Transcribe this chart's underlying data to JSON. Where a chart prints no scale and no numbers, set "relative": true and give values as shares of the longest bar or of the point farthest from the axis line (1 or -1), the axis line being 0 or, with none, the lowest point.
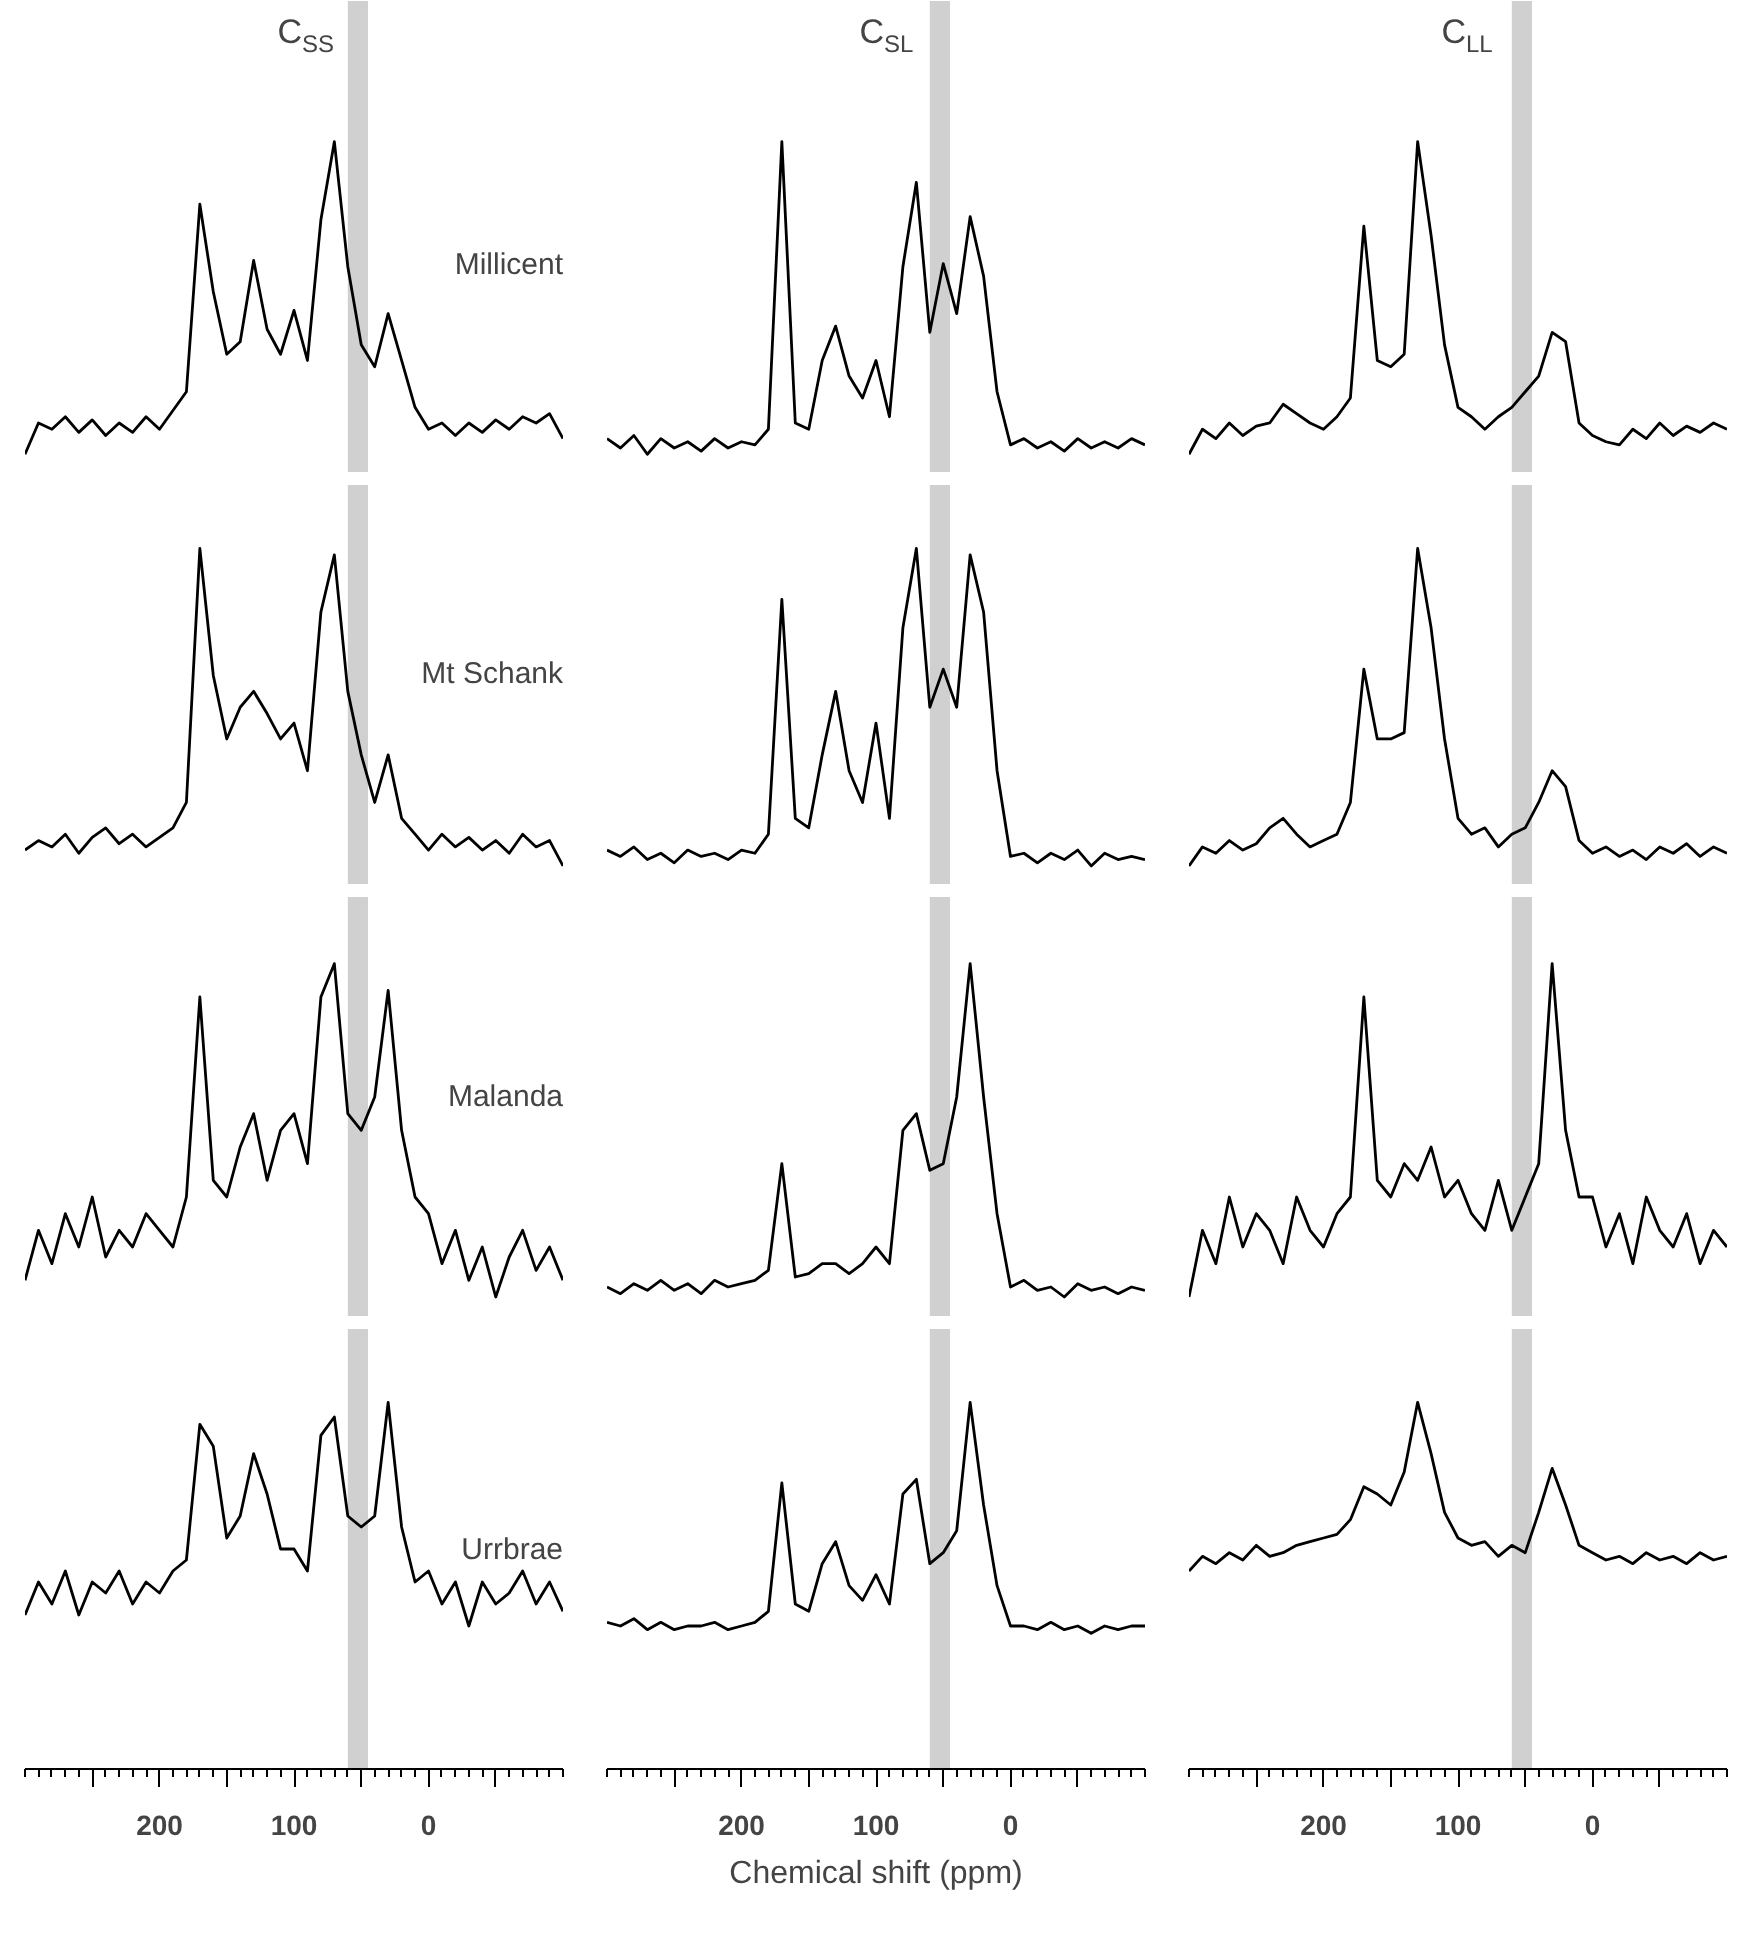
{
  "chart_data": [
    {
      "type": "line",
      "relative": true,
      "title": "C$_{SS}$",
      "annotations": [
        "Millicent"
      ],
      "color": "#000000",
      "tick_labels": false,
      "categories": [
        null,
        null,
        null,
        null,
        null,
        null,
        null,
        null,
        null,
        null,
        null,
        null,
        null,
        null,
        null,
        null,
        null,
        null,
        null,
        null,
        null,
        null,
        null,
        null,
        null,
        null,
        null,
        null,
        null,
        null,
        null,
        null,
        null,
        null,
        null,
        null,
        null,
        null,
        null,
        null,
        null
      ],
      "values": [
        0,
        0.1,
        0.08,
        0.12,
        0.07,
        0.11,
        0.06,
        0.1,
        0.07,
        0.12,
        0.08,
        0.14,
        0.2,
        0.8,
        0.52,
        0.32,
        0.36,
        0.62,
        0.4,
        0.32,
        0.46,
        0.3,
        0.75,
        1,
        0.6,
        0.35,
        0.28,
        0.45,
        0.3,
        0.15,
        0.08,
        0.1,
        0.06,
        0.1,
        0.07,
        0.11,
        0.08,
        0.12,
        0.1,
        0.13,
        0.05
      ]
    },
    {
      "type": "line",
      "relative": true,
      "title": "C$_{SL}$",
      "color": "#000000",
      "tick_labels": false,
      "categories": [
        null,
        null,
        null,
        null,
        null,
        null,
        null,
        null,
        null,
        null,
        null,
        null,
        null,
        null,
        null,
        null,
        null,
        null,
        null,
        null,
        null,
        null,
        null,
        null,
        null,
        null,
        null,
        null,
        null,
        null,
        null,
        null,
        null,
        null,
        null,
        null,
        null,
        null,
        null,
        null,
        null
      ],
      "values": [
        0.05,
        0.02,
        0.06,
        0.0,
        0.05,
        0.02,
        0.04,
        0.01,
        0.05,
        0.02,
        0.04,
        0.03,
        0.08,
        1,
        0.1,
        0.08,
        0.3,
        0.41,
        0.25,
        0.18,
        0.3,
        0.12,
        0.6,
        0.87,
        0.39,
        0.61,
        0.45,
        0.76,
        0.57,
        0.2,
        0.03,
        0.05,
        0.02,
        0.04,
        0.01,
        0.05,
        0.02,
        0.04,
        0.02,
        0.05,
        0.03
      ]
    },
    {
      "type": "line",
      "relative": true,
      "title": "C$_{LL}$",
      "color": "#000000",
      "tick_labels": false,
      "categories": [
        null,
        null,
        null,
        null,
        null,
        null,
        null,
        null,
        null,
        null,
        null,
        null,
        null,
        null,
        null,
        null,
        null,
        null,
        null,
        null,
        null,
        null,
        null,
        null,
        null,
        null,
        null,
        null,
        null,
        null,
        null,
        null,
        null,
        null,
        null,
        null,
        null,
        null,
        null,
        null,
        null
      ],
      "values": [
        0,
        0.08,
        0.05,
        0.1,
        0.06,
        0.09,
        0.1,
        0.16,
        0.13,
        0.1,
        0.08,
        0.12,
        0.18,
        0.73,
        0.3,
        0.28,
        0.32,
        1,
        0.7,
        0.35,
        0.15,
        0.12,
        0.08,
        0.12,
        0.15,
        0.2,
        0.25,
        0.39,
        0.36,
        0.1,
        0.06,
        0.04,
        0.03,
        0.08,
        0.05,
        0.1,
        0.06,
        0.09,
        0.07,
        0.1,
        0.08
      ]
    },
    {
      "type": "line",
      "relative": true,
      "annotations": [
        "Mt Schank"
      ],
      "color": "#000000",
      "tick_labels": false,
      "categories": [
        null,
        null,
        null,
        null,
        null,
        null,
        null,
        null,
        null,
        null,
        null,
        null,
        null,
        null,
        null,
        null,
        null,
        null,
        null,
        null,
        null,
        null,
        null,
        null,
        null,
        null,
        null,
        null,
        null,
        null,
        null,
        null,
        null,
        null,
        null,
        null,
        null,
        null,
        null,
        null,
        null
      ],
      "values": [
        0.05,
        0.08,
        0.06,
        0.1,
        0.04,
        0.09,
        0.12,
        0.07,
        0.1,
        0.06,
        0.09,
        0.12,
        0.2,
        1,
        0.6,
        0.4,
        0.5,
        0.55,
        0.48,
        0.4,
        0.45,
        0.3,
        0.8,
        0.98,
        0.55,
        0.35,
        0.2,
        0.35,
        0.15,
        0.1,
        0.05,
        0.1,
        0.06,
        0.09,
        0.05,
        0.08,
        0.04,
        0.1,
        0.06,
        0.08,
        0
      ]
    },
    {
      "type": "line",
      "relative": true,
      "color": "#000000",
      "tick_labels": false,
      "categories": [
        null,
        null,
        null,
        null,
        null,
        null,
        null,
        null,
        null,
        null,
        null,
        null,
        null,
        null,
        null,
        null,
        null,
        null,
        null,
        null,
        null,
        null,
        null,
        null,
        null,
        null,
        null,
        null,
        null,
        null,
        null,
        null,
        null,
        null,
        null,
        null,
        null,
        null,
        null,
        null,
        null
      ],
      "values": [
        0.05,
        0.03,
        0.06,
        0.02,
        0.04,
        0.01,
        0.05,
        0.03,
        0.04,
        0.02,
        0.05,
        0.04,
        0.1,
        0.84,
        0.15,
        0.12,
        0.35,
        0.55,
        0.3,
        0.2,
        0.45,
        0.15,
        0.75,
        1,
        0.5,
        0.62,
        0.5,
        0.98,
        0.8,
        0.3,
        0.03,
        0.04,
        0.01,
        0.04,
        0.02,
        0.05,
        0.0,
        0.04,
        0.02,
        0.03,
        0.02
      ]
    },
    {
      "type": "line",
      "relative": true,
      "color": "#000000",
      "tick_labels": false,
      "categories": [
        null,
        null,
        null,
        null,
        null,
        null,
        null,
        null,
        null,
        null,
        null,
        null,
        null,
        null,
        null,
        null,
        null,
        null,
        null,
        null,
        null,
        null,
        null,
        null,
        null,
        null,
        null,
        null,
        null,
        null,
        null,
        null,
        null,
        null,
        null,
        null,
        null,
        null,
        null,
        null,
        null
      ],
      "values": [
        0,
        0.06,
        0.04,
        0.08,
        0.05,
        0.07,
        0.12,
        0.15,
        0.1,
        0.06,
        0.08,
        0.1,
        0.2,
        0.62,
        0.4,
        0.4,
        0.42,
        1,
        0.75,
        0.4,
        0.15,
        0.1,
        0.12,
        0.06,
        0.1,
        0.12,
        0.2,
        0.3,
        0.25,
        0.08,
        0.04,
        0.06,
        0.03,
        0.05,
        0.02,
        0.06,
        0.04,
        0.07,
        0.03,
        0.06,
        0.04
      ]
    },
    {
      "type": "line",
      "relative": true,
      "annotations": [
        "Malanda"
      ],
      "color": "#000000",
      "tick_labels": false,
      "categories": [
        null,
        null,
        null,
        null,
        null,
        null,
        null,
        null,
        null,
        null,
        null,
        null,
        null,
        null,
        null,
        null,
        null,
        null,
        null,
        null,
        null,
        null,
        null,
        null,
        null,
        null,
        null,
        null,
        null,
        null,
        null,
        null,
        null,
        null,
        null,
        null,
        null,
        null,
        null,
        null,
        null
      ],
      "values": [
        0.05,
        0.2,
        0.1,
        0.25,
        0.15,
        0.3,
        0.12,
        0.2,
        0.15,
        0.25,
        0.2,
        0.15,
        0.3,
        0.9,
        0.35,
        0.3,
        0.45,
        0.55,
        0.35,
        0.5,
        0.55,
        0.4,
        0.9,
        1,
        0.55,
        0.5,
        0.6,
        0.92,
        0.5,
        0.3,
        0.25,
        0.1,
        0.2,
        0.05,
        0.15,
        0,
        0.12,
        0.2,
        0.08,
        0.15,
        0.05
      ]
    },
    {
      "type": "line",
      "relative": true,
      "color": "#000000",
      "tick_labels": false,
      "categories": [
        null,
        null,
        null,
        null,
        null,
        null,
        null,
        null,
        null,
        null,
        null,
        null,
        null,
        null,
        null,
        null,
        null,
        null,
        null,
        null,
        null,
        null,
        null,
        null,
        null,
        null,
        null,
        null,
        null,
        null,
        null,
        null,
        null,
        null,
        null,
        null,
        null,
        null,
        null,
        null,
        null
      ],
      "values": [
        0.03,
        0.01,
        0.04,
        0.02,
        0.05,
        0.02,
        0.04,
        0.01,
        0.05,
        0.03,
        0.04,
        0.05,
        0.08,
        0.4,
        0.06,
        0.07,
        0.1,
        0.1,
        0.07,
        0.1,
        0.15,
        0.1,
        0.5,
        0.55,
        0.38,
        0.4,
        0.6,
        1,
        0.6,
        0.25,
        0.03,
        0.05,
        0.02,
        0.03,
        0.0,
        0.04,
        0.02,
        0.03,
        0.01,
        0.03,
        0.02
      ]
    },
    {
      "type": "line",
      "relative": true,
      "color": "#000000",
      "tick_labels": false,
      "categories": [
        null,
        null,
        null,
        null,
        null,
        null,
        null,
        null,
        null,
        null,
        null,
        null,
        null,
        null,
        null,
        null,
        null,
        null,
        null,
        null,
        null,
        null,
        null,
        null,
        null,
        null,
        null,
        null,
        null,
        null,
        null,
        null,
        null,
        null,
        null,
        null,
        null,
        null,
        null,
        null,
        null
      ],
      "values": [
        0,
        0.2,
        0.1,
        0.3,
        0.15,
        0.25,
        0.2,
        0.1,
        0.3,
        0.2,
        0.15,
        0.25,
        0.3,
        0.9,
        0.35,
        0.3,
        0.4,
        0.35,
        0.45,
        0.3,
        0.35,
        0.25,
        0.2,
        0.35,
        0.2,
        0.3,
        0.4,
        1,
        0.5,
        0.3,
        0.3,
        0.15,
        0.25,
        0.1,
        0.3,
        0.2,
        0.15,
        0.25,
        0.1,
        0.2,
        0.15
      ]
    },
    {
      "type": "line",
      "relative": true,
      "annotations": [
        "Urrbrae"
      ],
      "color": "#000000",
      "xlim": [
        300,
        -100
      ],
      "xticks": [
        {
          "value": 250,
          "label": null
        },
        200,
        {
          "value": 150,
          "label": null
        },
        100,
        {
          "value": 50,
          "label": null
        },
        0,
        {
          "value": -50,
          "label": null
        }
      ],
      "tick_labels": "x",
      "bands": [
        {
          "axis": "x",
          "from": 60,
          "to": 45,
          "color": "#d0d0d0"
        }
      ],
      "x": [
        300,
        290,
        280,
        270,
        260,
        250,
        240,
        230,
        220,
        210,
        200,
        190,
        180,
        170,
        160,
        150,
        140,
        130,
        120,
        110,
        100,
        90,
        80,
        70,
        60,
        50,
        40,
        30,
        20,
        10,
        0,
        -10,
        -20,
        -30,
        -40,
        -50,
        -60,
        -70,
        -80,
        -90,
        -100
      ],
      "values": [
        0.42,
        0.51,
        0.45,
        0.54,
        0.42,
        0.51,
        0.48,
        0.54,
        0.45,
        0.51,
        0.48,
        0.54,
        0.57,
        0.94,
        0.88,
        0.63,
        0.69,
        0.86,
        0.75,
        0.6,
        0.6,
        0.54,
        0.91,
        0.96,
        0.69,
        0.66,
        0.69,
        1,
        0.66,
        0.51,
        0.54,
        0.45,
        0.51,
        0.39,
        0.51,
        0.45,
        0.48,
        0.54,
        0.45,
        0.51,
        0.43
      ]
    },
    {
      "type": "line",
      "relative": true,
      "xlabel": "Chemical shift (ppm)",
      "color": "#000000",
      "xlim": [
        300,
        -100
      ],
      "xticks": [
        {
          "value": 250,
          "label": null
        },
        200,
        {
          "value": 150,
          "label": null
        },
        100,
        {
          "value": 50,
          "label": null
        },
        0,
        {
          "value": -50,
          "label": null
        }
      ],
      "tick_labels": "x",
      "bands": [
        {
          "axis": "x",
          "from": 60,
          "to": 45,
          "color": "#d0d0d0"
        }
      ],
      "x": [
        300,
        290,
        280,
        270,
        260,
        250,
        240,
        230,
        220,
        210,
        200,
        190,
        180,
        170,
        160,
        150,
        140,
        130,
        120,
        110,
        100,
        90,
        80,
        70,
        60,
        50,
        40,
        30,
        20,
        10,
        0,
        -10,
        -20,
        -30,
        -40,
        -50,
        -60,
        -70,
        -80,
        -90,
        -100
      ],
      "values": [
        0.4,
        0.39,
        0.41,
        0.38,
        0.4,
        0.38,
        0.39,
        0.39,
        0.4,
        0.38,
        0.39,
        0.4,
        0.43,
        0.78,
        0.45,
        0.43,
        0.56,
        0.62,
        0.5,
        0.46,
        0.53,
        0.45,
        0.75,
        0.79,
        0.56,
        0.59,
        0.65,
        1,
        0.72,
        0.5,
        0.39,
        0.39,
        0.38,
        0.4,
        0.38,
        0.39,
        0.37,
        0.39,
        0.38,
        0.39,
        0.39
      ]
    },
    {
      "type": "line",
      "relative": true,
      "color": "#000000",
      "xlim": [
        300,
        -100
      ],
      "xticks": [
        {
          "value": 250,
          "label": null
        },
        200,
        {
          "value": 150,
          "label": null
        },
        100,
        {
          "value": 50,
          "label": null
        },
        0,
        {
          "value": -50,
          "label": null
        }
      ],
      "tick_labels": "x",
      "bands": [
        {
          "axis": "x",
          "from": 60,
          "to": 45,
          "color": "#d0d0d0"
        }
      ],
      "x": [
        300,
        290,
        280,
        270,
        260,
        250,
        240,
        230,
        220,
        210,
        200,
        190,
        180,
        170,
        160,
        150,
        140,
        130,
        120,
        110,
        100,
        90,
        80,
        70,
        60,
        50,
        40,
        30,
        20,
        10,
        0,
        -10,
        -20,
        -30,
        -40,
        -50,
        -60,
        -70,
        -80,
        -90,
        -100
      ],
      "values": [
        0.54,
        0.58,
        0.56,
        0.59,
        0.57,
        0.61,
        0.58,
        0.59,
        0.61,
        0.62,
        0.63,
        0.64,
        0.68,
        0.77,
        0.75,
        0.72,
        0.81,
        1,
        0.86,
        0.7,
        0.63,
        0.61,
        0.62,
        0.58,
        0.61,
        0.59,
        0.7,
        0.82,
        0.72,
        0.61,
        0.59,
        0.57,
        0.58,
        0.56,
        0.59,
        0.57,
        0.58,
        0.56,
        0.59,
        0.57,
        0.58
      ]
    }
  ]
}
